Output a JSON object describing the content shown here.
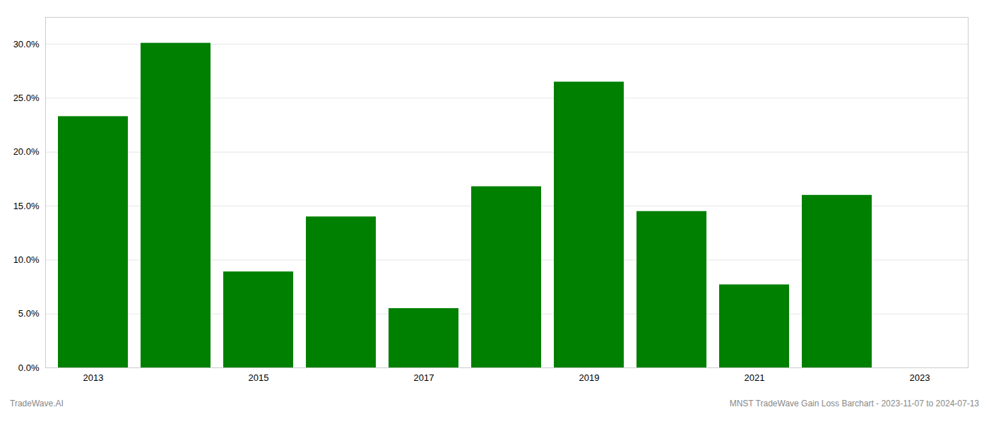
{
  "chart_data": {
    "type": "bar",
    "categories": [
      "2013",
      null,
      "2015",
      null,
      "2017",
      null,
      "2019",
      null,
      "2021",
      null,
      "2023"
    ],
    "values": [
      0.233,
      0.301,
      0.089,
      0.14,
      0.055,
      0.168,
      0.265,
      0.145,
      0.077,
      0.16,
      0.0
    ],
    "color": "#008000",
    "ylim": [
      0.0,
      0.325
    ],
    "yticks": [
      {
        "value": 0.0,
        "label": "0.0%"
      },
      {
        "value": 0.05,
        "label": "5.0%"
      },
      {
        "value": 0.1,
        "label": "10.0%"
      },
      {
        "value": 0.15,
        "label": "15.0%"
      },
      {
        "value": 0.2,
        "label": "20.0%"
      },
      {
        "value": 0.25,
        "label": "25.0%"
      },
      {
        "value": 0.3,
        "label": "30.0%"
      }
    ],
    "grid": true,
    "annotations": [
      "TradeWave.AI",
      "MNST TradeWave Gain Loss Barchart - 2023-11-07 to 2024-07-13"
    ]
  }
}
